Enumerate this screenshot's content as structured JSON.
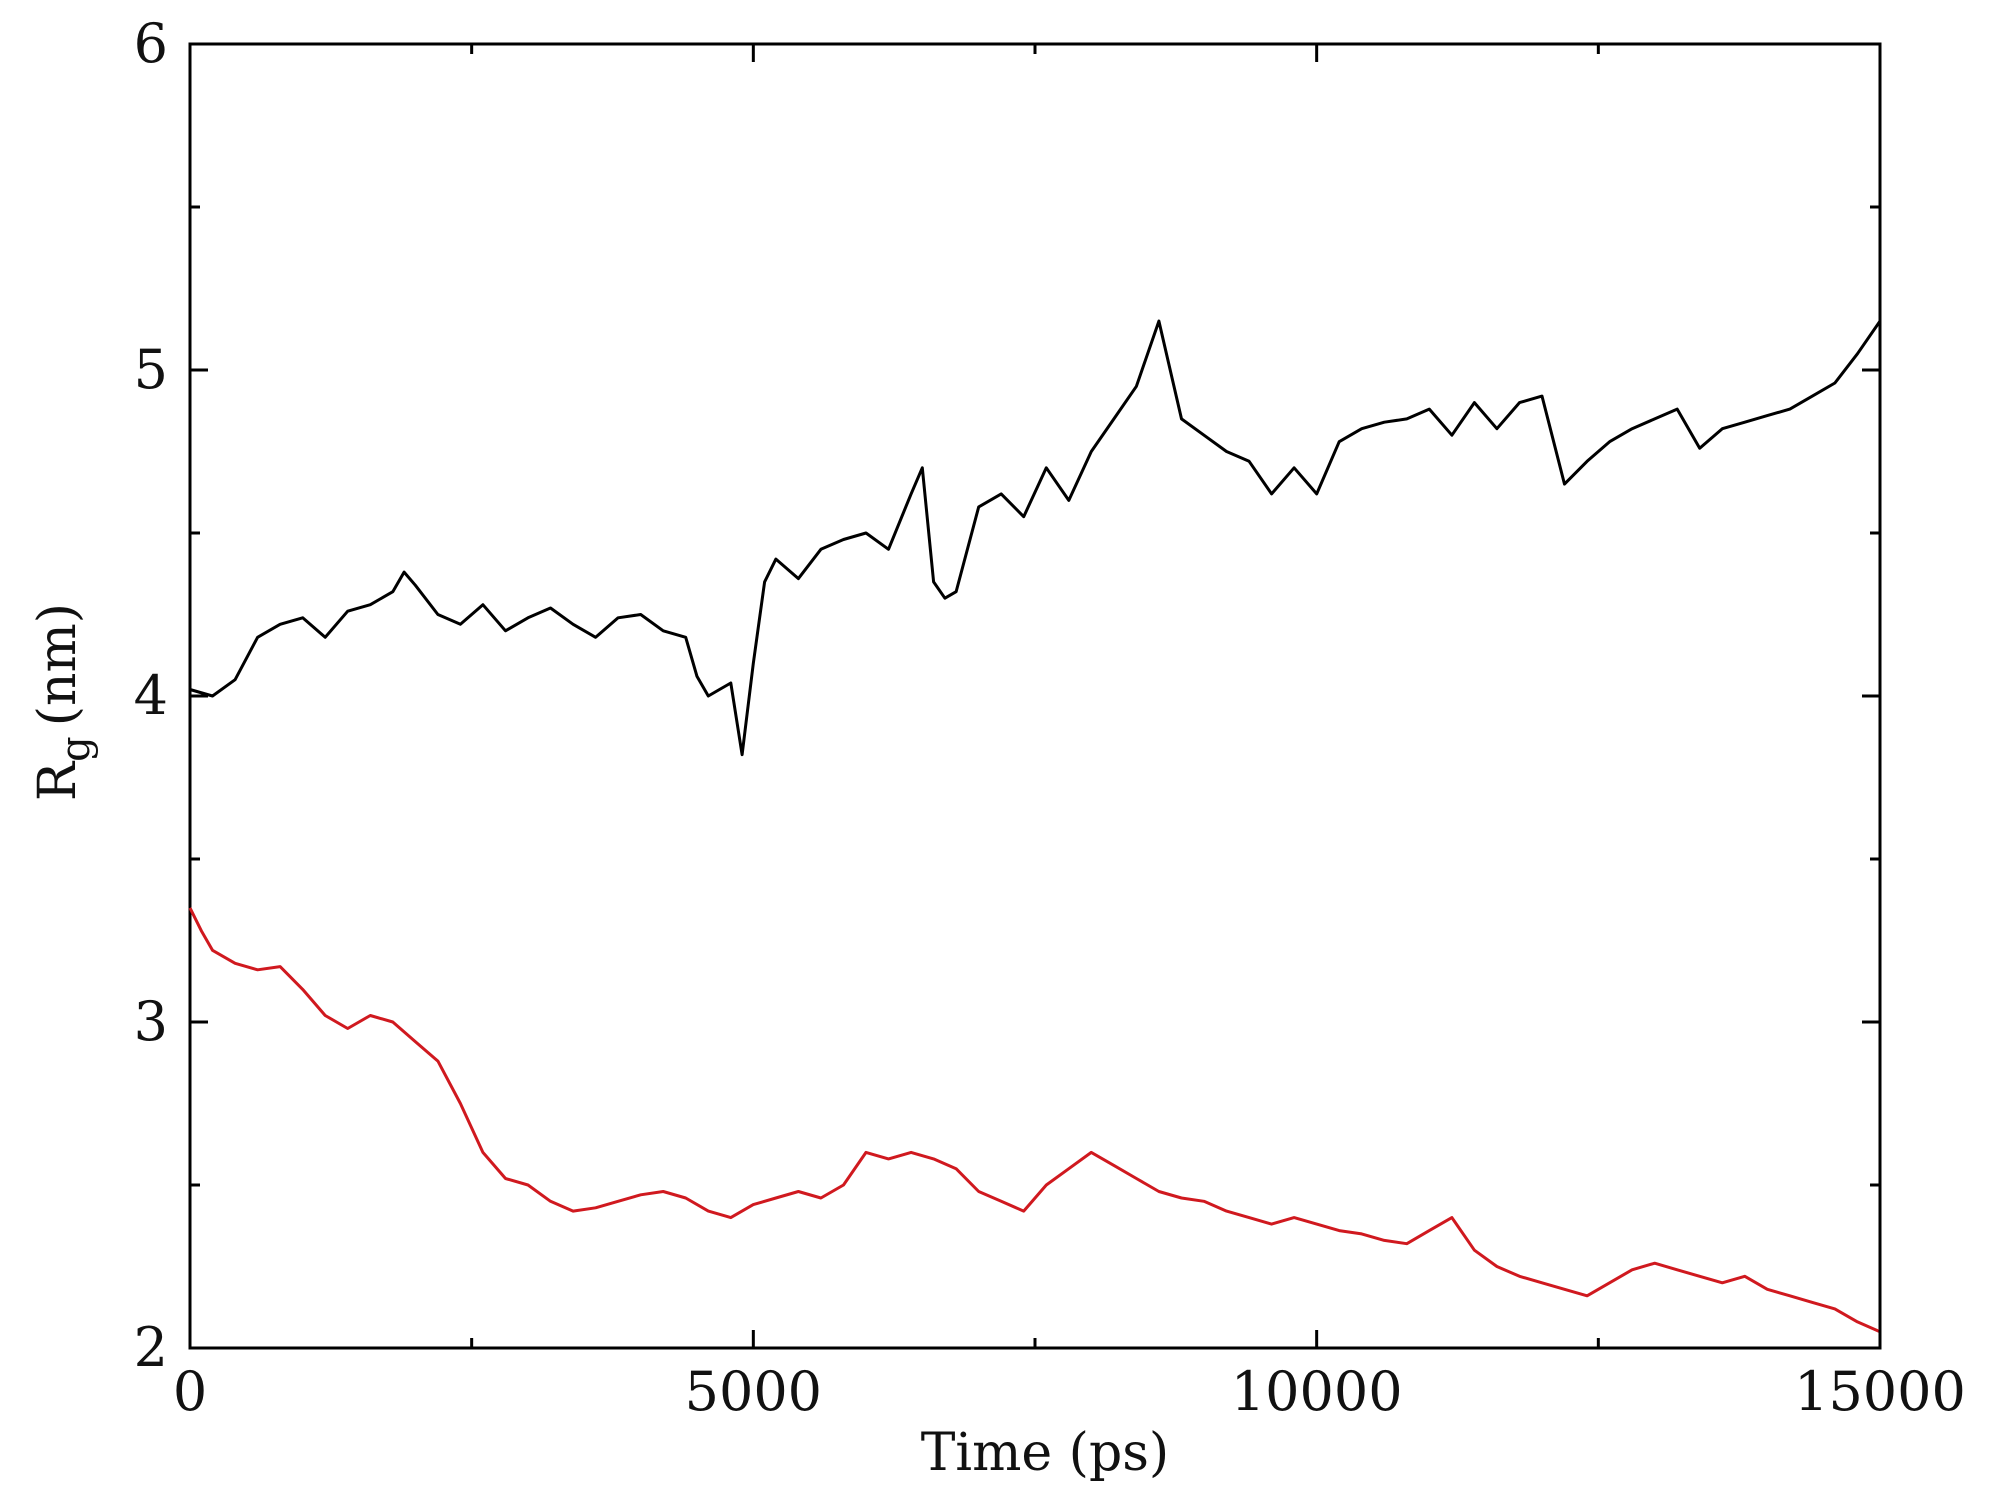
{
  "chart_data": {
    "type": "line",
    "title": "",
    "xlabel": "Time (ps)",
    "ylabel": "Rg (nm)",
    "ylabel_parts": {
      "main": "R",
      "subscript": "g",
      "unit": "(nm)"
    },
    "xlim": [
      0,
      15000
    ],
    "ylim": [
      2,
      6
    ],
    "xticks": [
      0,
      5000,
      10000,
      15000
    ],
    "xtick_labels": [
      "0",
      "5000",
      "10000",
      "15000"
    ],
    "xminor": [
      2500,
      7500,
      12500
    ],
    "yticks": [
      2,
      3,
      4,
      5,
      6
    ],
    "ytick_labels": [
      "2",
      "3",
      "4",
      "5",
      "6"
    ],
    "yminor": [
      2.5,
      3.5,
      4.5,
      5.5
    ],
    "grid": false,
    "series": [
      {
        "color": "#000000",
        "x": [
          0,
          200,
          400,
          600,
          800,
          1000,
          1200,
          1400,
          1600,
          1800,
          1900,
          2000,
          2200,
          2400,
          2600,
          2800,
          3000,
          3200,
          3400,
          3600,
          3800,
          4000,
          4200,
          4400,
          4500,
          4600,
          4700,
          4800,
          4900,
          5000,
          5100,
          5200,
          5400,
          5600,
          5800,
          6000,
          6200,
          6400,
          6500,
          6600,
          6700,
          6800,
          7000,
          7200,
          7400,
          7600,
          7800,
          8000,
          8200,
          8400,
          8600,
          8800,
          9000,
          9200,
          9400,
          9600,
          9800,
          10000,
          10200,
          10400,
          10600,
          10800,
          11000,
          11200,
          11400,
          11600,
          11800,
          12000,
          12200,
          12400,
          12600,
          12800,
          13000,
          13200,
          13400,
          13600,
          13800,
          14000,
          14200,
          14400,
          14600,
          14800,
          15000
        ],
        "y": [
          4.02,
          4.0,
          4.05,
          4.18,
          4.22,
          4.24,
          4.18,
          4.26,
          4.28,
          4.32,
          4.38,
          4.34,
          4.25,
          4.22,
          4.28,
          4.2,
          4.24,
          4.27,
          4.22,
          4.18,
          4.24,
          4.25,
          4.2,
          4.18,
          4.06,
          4.0,
          4.02,
          4.04,
          3.82,
          4.1,
          4.35,
          4.42,
          4.36,
          4.45,
          4.48,
          4.5,
          4.45,
          4.62,
          4.7,
          4.35,
          4.3,
          4.32,
          4.58,
          4.62,
          4.55,
          4.7,
          4.6,
          4.75,
          4.85,
          4.95,
          5.15,
          4.85,
          4.8,
          4.75,
          4.72,
          4.62,
          4.7,
          4.62,
          4.78,
          4.82,
          4.84,
          4.85,
          4.88,
          4.8,
          4.9,
          4.82,
          4.9,
          4.92,
          4.65,
          4.72,
          4.78,
          4.82,
          4.85,
          4.88,
          4.76,
          4.82,
          4.84,
          4.86,
          4.88,
          4.92,
          4.96,
          5.05,
          5.15
        ]
      },
      {
        "color": "#d0191f",
        "x": [
          0,
          100,
          200,
          400,
          600,
          800,
          1000,
          1200,
          1400,
          1600,
          1800,
          2000,
          2200,
          2400,
          2600,
          2800,
          3000,
          3200,
          3400,
          3600,
          3800,
          4000,
          4200,
          4400,
          4600,
          4800,
          5000,
          5200,
          5400,
          5600,
          5800,
          6000,
          6200,
          6400,
          6600,
          6800,
          7000,
          7200,
          7400,
          7600,
          7800,
          8000,
          8200,
          8400,
          8600,
          8800,
          9000,
          9200,
          9400,
          9600,
          9800,
          10000,
          10200,
          10400,
          10600,
          10800,
          11000,
          11200,
          11400,
          11600,
          11800,
          12000,
          12200,
          12400,
          12600,
          12800,
          13000,
          13200,
          13400,
          13600,
          13800,
          14000,
          14200,
          14400,
          14600,
          14800,
          15000
        ],
        "y": [
          3.35,
          3.28,
          3.22,
          3.18,
          3.16,
          3.17,
          3.1,
          3.02,
          2.98,
          3.02,
          3.0,
          2.94,
          2.88,
          2.75,
          2.6,
          2.52,
          2.5,
          2.45,
          2.42,
          2.43,
          2.45,
          2.47,
          2.48,
          2.46,
          2.42,
          2.4,
          2.44,
          2.46,
          2.48,
          2.46,
          2.5,
          2.6,
          2.58,
          2.6,
          2.58,
          2.55,
          2.48,
          2.45,
          2.42,
          2.5,
          2.55,
          2.6,
          2.56,
          2.52,
          2.48,
          2.46,
          2.45,
          2.42,
          2.4,
          2.38,
          2.4,
          2.38,
          2.36,
          2.35,
          2.33,
          2.32,
          2.36,
          2.4,
          2.3,
          2.25,
          2.22,
          2.2,
          2.18,
          2.16,
          2.2,
          2.24,
          2.26,
          2.24,
          2.22,
          2.2,
          2.22,
          2.18,
          2.16,
          2.14,
          2.12,
          2.08,
          2.05
        ]
      }
    ]
  }
}
